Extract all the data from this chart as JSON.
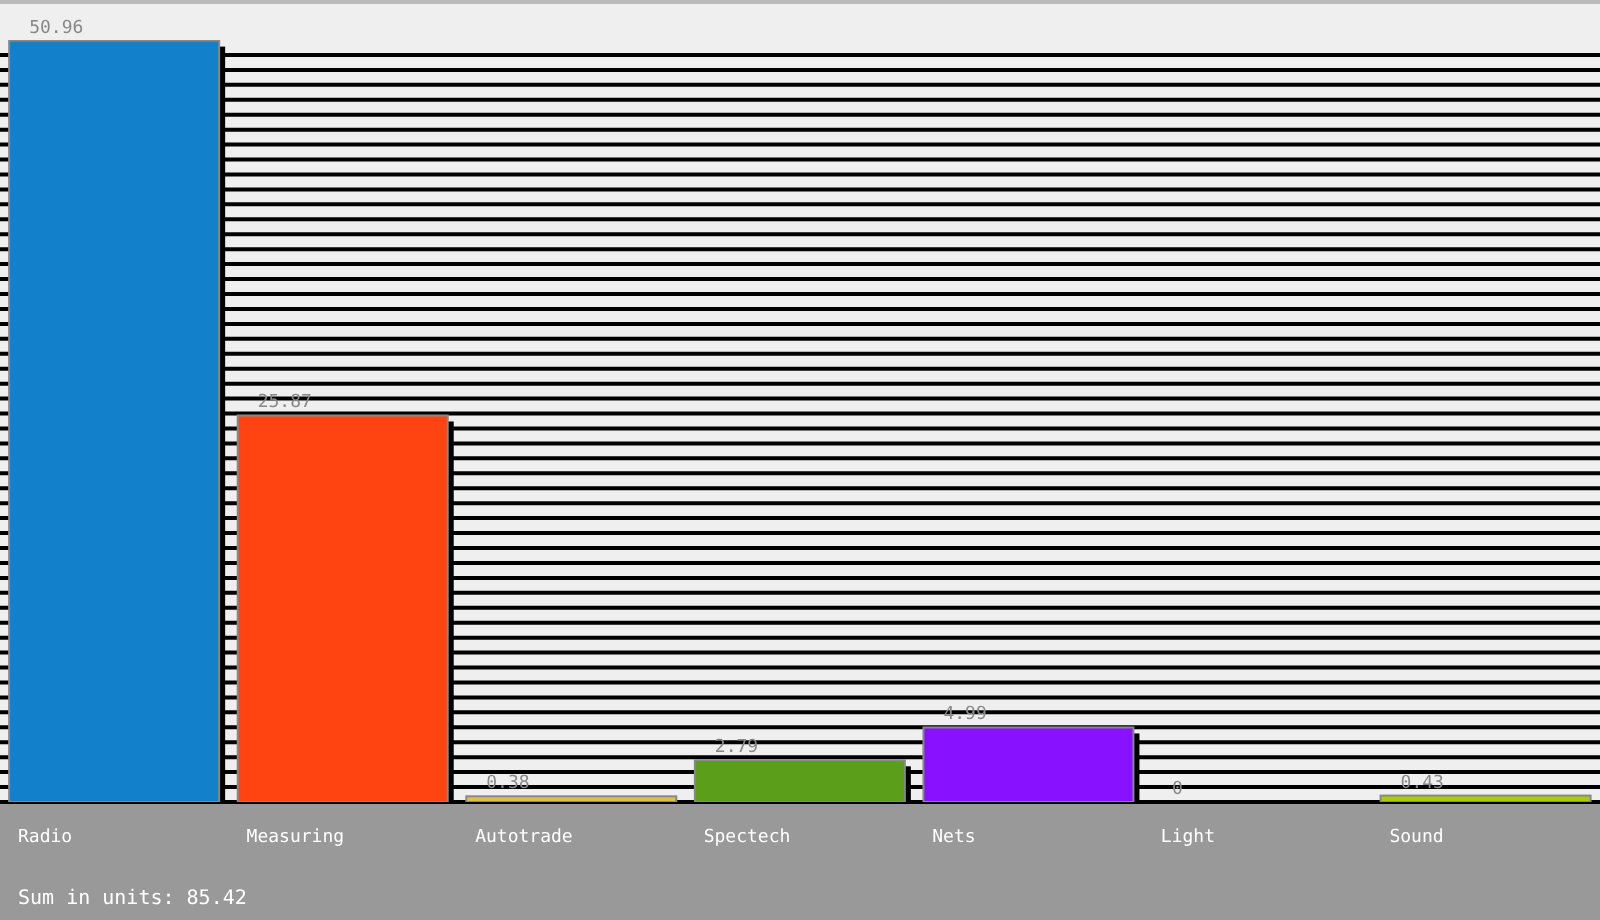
{
  "chart_data": {
    "type": "bar",
    "categories": [
      "Radio",
      "Measuring",
      "Autotrade",
      "Spectech",
      "Nets",
      "Light",
      "Sound"
    ],
    "values": [
      50.96,
      25.87,
      0.38,
      2.79,
      4.99,
      0,
      0.43
    ],
    "colors": [
      "#1380cc",
      "#ff4411",
      "#e0c040",
      "#5a9e1a",
      "#8811ff",
      "#333333",
      "#aacc00"
    ],
    "data_labels": true,
    "ylim": [
      0,
      51
    ],
    "yticks": [
      {
        "value": 0,
        "label": null
      },
      {
        "value": 1,
        "label": null
      },
      {
        "value": 2,
        "label": null
      },
      {
        "value": 3,
        "label": null
      },
      {
        "value": 4,
        "label": null
      },
      {
        "value": 5,
        "label": null
      },
      {
        "value": 6,
        "label": null
      },
      {
        "value": 7,
        "label": null
      },
      {
        "value": 8,
        "label": null
      },
      {
        "value": 9,
        "label": null
      },
      {
        "value": 10,
        "label": null
      },
      {
        "value": 11,
        "label": null
      },
      {
        "value": 12,
        "label": null
      },
      {
        "value": 13,
        "label": null
      },
      {
        "value": 14,
        "label": null
      },
      {
        "value": 15,
        "label": null
      },
      {
        "value": 16,
        "label": null
      },
      {
        "value": 17,
        "label": null
      },
      {
        "value": 18,
        "label": null
      },
      {
        "value": 19,
        "label": null
      },
      {
        "value": 20,
        "label": null
      },
      {
        "value": 21,
        "label": null
      },
      {
        "value": 22,
        "label": null
      },
      {
        "value": 23,
        "label": null
      },
      {
        "value": 24,
        "label": null
      },
      {
        "value": 25,
        "label": null
      },
      {
        "value": 26,
        "label": null
      },
      {
        "value": 27,
        "label": null
      },
      {
        "value": 28,
        "label": null
      },
      {
        "value": 29,
        "label": null
      },
      {
        "value": 30,
        "label": null
      },
      {
        "value": 31,
        "label": null
      },
      {
        "value": 32,
        "label": null
      },
      {
        "value": 33,
        "label": null
      },
      {
        "value": 34,
        "label": null
      },
      {
        "value": 35,
        "label": null
      },
      {
        "value": 36,
        "label": null
      },
      {
        "value": 37,
        "label": null
      },
      {
        "value": 38,
        "label": null
      },
      {
        "value": 39,
        "label": null
      },
      {
        "value": 40,
        "label": null
      },
      {
        "value": 41,
        "label": null
      },
      {
        "value": 42,
        "label": null
      },
      {
        "value": 43,
        "label": null
      },
      {
        "value": 44,
        "label": null
      },
      {
        "value": 45,
        "label": null
      },
      {
        "value": 46,
        "label": null
      },
      {
        "value": 47,
        "label": null
      },
      {
        "value": 48,
        "label": null
      },
      {
        "value": 49,
        "label": null
      },
      {
        "value": 50,
        "label": null
      }
    ],
    "tick_labels": "x",
    "grid": "y",
    "annotations": [
      "Sum in units: 85.42"
    ]
  }
}
